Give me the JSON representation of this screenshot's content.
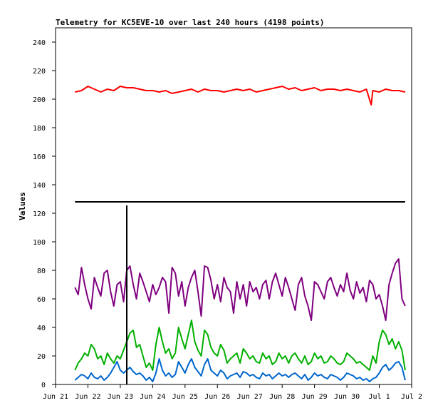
{
  "chart_data": {
    "type": "line",
    "title": "Telemetry for KC5EVE-10 over last 240 hours (4198 points)",
    "xlabel": "",
    "ylabel": "Values",
    "ylim": [
      0,
      250
    ],
    "yticks": [
      0,
      20,
      40,
      60,
      80,
      100,
      120,
      140,
      160,
      180,
      200,
      220,
      240
    ],
    "xlim": [
      0,
      11
    ],
    "x_tick_labels": [
      "Jun 21",
      "Jun 22",
      "Jun 23",
      "Jun 24",
      "Jun 25",
      "Jun 26",
      "Jun 27",
      "Jun 28",
      "Jun 29",
      "Jun 30",
      "Jul 1",
      "Jul 2"
    ],
    "grid": false,
    "legend": "none",
    "colors": {
      "red": "#ff0000",
      "black": "#000000",
      "purple": "#7f007f",
      "green": "#00b000",
      "blue": "#0066cc"
    },
    "series": [
      {
        "color": "#ff0000",
        "x": [
          0.6,
          0.8,
          1.0,
          1.2,
          1.4,
          1.6,
          1.8,
          2.0,
          2.2,
          2.4,
          2.6,
          2.8,
          3.0,
          3.2,
          3.4,
          3.6,
          3.8,
          4.0,
          4.2,
          4.4,
          4.6,
          4.8,
          5.0,
          5.2,
          5.4,
          5.6,
          5.8,
          6.0,
          6.2,
          6.4,
          6.6,
          6.8,
          7.0,
          7.2,
          7.4,
          7.6,
          7.8,
          8.0,
          8.2,
          8.4,
          8.6,
          8.8,
          9.0,
          9.2,
          9.4,
          9.6,
          9.75,
          9.8,
          10.0,
          10.2,
          10.4,
          10.6,
          10.8
        ],
        "y": [
          205,
          206,
          209,
          207,
          205,
          207,
          206,
          209,
          208,
          208,
          207,
          206,
          206,
          205,
          206,
          204,
          205,
          206,
          207,
          205,
          207,
          206,
          206,
          205,
          206,
          207,
          206,
          207,
          205,
          206,
          207,
          208,
          209,
          207,
          208,
          206,
          207,
          208,
          206,
          207,
          207,
          206,
          207,
          206,
          205,
          207,
          196,
          206,
          205,
          207,
          206,
          206,
          205
        ]
      },
      {
        "color": "#000000",
        "x": [
          0.6,
          10.8
        ],
        "y": [
          128,
          128
        ]
      },
      {
        "color": "#7f007f",
        "x": [
          0.6,
          0.7,
          0.8,
          0.9,
          1.0,
          1.1,
          1.2,
          1.3,
          1.4,
          1.5,
          1.6,
          1.7,
          1.8,
          1.9,
          2.0,
          2.1,
          2.2,
          2.3,
          2.4,
          2.5,
          2.6,
          2.7,
          2.8,
          2.9,
          3.0,
          3.1,
          3.2,
          3.3,
          3.4,
          3.5,
          3.6,
          3.7,
          3.8,
          3.9,
          4.0,
          4.1,
          4.2,
          4.3,
          4.4,
          4.5,
          4.6,
          4.7,
          4.8,
          4.9,
          5.0,
          5.1,
          5.2,
          5.3,
          5.4,
          5.5,
          5.6,
          5.7,
          5.8,
          5.9,
          6.0,
          6.1,
          6.2,
          6.3,
          6.4,
          6.5,
          6.6,
          6.7,
          6.8,
          6.9,
          7.0,
          7.1,
          7.2,
          7.3,
          7.4,
          7.5,
          7.6,
          7.7,
          7.8,
          7.9,
          8.0,
          8.1,
          8.2,
          8.3,
          8.4,
          8.5,
          8.6,
          8.7,
          8.8,
          8.9,
          9.0,
          9.1,
          9.2,
          9.3,
          9.4,
          9.5,
          9.6,
          9.7,
          9.8,
          9.9,
          10.0,
          10.1,
          10.2,
          10.3,
          10.4,
          10.5,
          10.6,
          10.7,
          10.8
        ],
        "y": [
          68,
          63,
          82,
          70,
          60,
          53,
          75,
          68,
          62,
          78,
          80,
          65,
          55,
          70,
          72,
          58,
          80,
          83,
          70,
          60,
          78,
          72,
          65,
          58,
          70,
          63,
          68,
          75,
          72,
          50,
          82,
          78,
          62,
          72,
          55,
          68,
          75,
          80,
          65,
          48,
          83,
          82,
          73,
          60,
          70,
          58,
          75,
          68,
          65,
          50,
          72,
          60,
          70,
          55,
          72,
          65,
          68,
          60,
          70,
          73,
          60,
          72,
          78,
          70,
          62,
          75,
          68,
          60,
          52,
          70,
          75,
          62,
          55,
          45,
          72,
          70,
          65,
          60,
          72,
          75,
          68,
          62,
          70,
          65,
          78,
          66,
          60,
          72,
          64,
          68,
          58,
          73,
          70,
          60,
          63,
          55,
          45,
          70,
          78,
          85,
          88,
          60,
          55
        ]
      },
      {
        "color": "#00b000",
        "x": [
          0.6,
          0.7,
          0.8,
          0.9,
          1.0,
          1.1,
          1.2,
          1.3,
          1.4,
          1.5,
          1.6,
          1.7,
          1.8,
          1.9,
          2.0,
          2.1,
          2.2,
          2.3,
          2.4,
          2.5,
          2.6,
          2.7,
          2.8,
          2.9,
          3.0,
          3.1,
          3.2,
          3.3,
          3.4,
          3.5,
          3.6,
          3.7,
          3.8,
          3.9,
          4.0,
          4.1,
          4.2,
          4.3,
          4.4,
          4.5,
          4.6,
          4.7,
          4.8,
          4.9,
          5.0,
          5.1,
          5.2,
          5.3,
          5.4,
          5.5,
          5.6,
          5.7,
          5.8,
          5.9,
          6.0,
          6.1,
          6.2,
          6.3,
          6.4,
          6.5,
          6.6,
          6.7,
          6.8,
          6.9,
          7.0,
          7.1,
          7.2,
          7.3,
          7.4,
          7.5,
          7.6,
          7.7,
          7.8,
          7.9,
          8.0,
          8.1,
          8.2,
          8.3,
          8.4,
          8.5,
          8.6,
          8.7,
          8.8,
          8.9,
          9.0,
          9.1,
          9.2,
          9.3,
          9.4,
          9.5,
          9.6,
          9.7,
          9.8,
          9.9,
          10.0,
          10.1,
          10.2,
          10.3,
          10.4,
          10.5,
          10.6,
          10.7,
          10.8
        ],
        "y": [
          10,
          15,
          18,
          22,
          20,
          28,
          25,
          18,
          20,
          14,
          22,
          18,
          15,
          20,
          18,
          24,
          30,
          36,
          38,
          26,
          28,
          20,
          12,
          15,
          10,
          28,
          40,
          30,
          22,
          25,
          18,
          22,
          40,
          32,
          25,
          35,
          45,
          30,
          24,
          20,
          38,
          35,
          26,
          22,
          20,
          28,
          24,
          15,
          18,
          20,
          22,
          15,
          25,
          22,
          18,
          20,
          16,
          15,
          22,
          18,
          20,
          14,
          16,
          22,
          18,
          20,
          15,
          20,
          22,
          18,
          15,
          20,
          14,
          16,
          22,
          18,
          20,
          15,
          16,
          20,
          18,
          15,
          14,
          16,
          22,
          20,
          18,
          15,
          16,
          14,
          12,
          10,
          20,
          15,
          30,
          38,
          35,
          28,
          32,
          25,
          30,
          24,
          10
        ]
      },
      {
        "color": "#0066cc",
        "x": [
          0.6,
          0.7,
          0.8,
          0.9,
          1.0,
          1.1,
          1.2,
          1.3,
          1.4,
          1.5,
          1.6,
          1.7,
          1.8,
          1.9,
          2.0,
          2.1,
          2.2,
          2.3,
          2.4,
          2.5,
          2.6,
          2.7,
          2.8,
          2.9,
          3.0,
          3.1,
          3.2,
          3.3,
          3.4,
          3.5,
          3.6,
          3.7,
          3.8,
          3.9,
          4.0,
          4.1,
          4.2,
          4.3,
          4.4,
          4.5,
          4.6,
          4.7,
          4.8,
          4.9,
          5.0,
          5.1,
          5.2,
          5.3,
          5.4,
          5.5,
          5.6,
          5.7,
          5.8,
          5.9,
          6.0,
          6.1,
          6.2,
          6.3,
          6.4,
          6.5,
          6.6,
          6.7,
          6.8,
          6.9,
          7.0,
          7.1,
          7.2,
          7.3,
          7.4,
          7.5,
          7.6,
          7.7,
          7.8,
          7.9,
          8.0,
          8.1,
          8.2,
          8.3,
          8.4,
          8.5,
          8.6,
          8.7,
          8.8,
          8.9,
          9.0,
          9.1,
          9.2,
          9.3,
          9.4,
          9.5,
          9.6,
          9.7,
          9.8,
          9.9,
          10.0,
          10.1,
          10.2,
          10.3,
          10.4,
          10.5,
          10.6,
          10.7,
          10.8
        ],
        "y": [
          3,
          5,
          7,
          6,
          4,
          8,
          5,
          4,
          6,
          3,
          5,
          8,
          12,
          16,
          10,
          8,
          10,
          12,
          9,
          7,
          8,
          6,
          3,
          5,
          2,
          8,
          18,
          10,
          6,
          8,
          5,
          7,
          16,
          12,
          8,
          14,
          18,
          12,
          9,
          6,
          14,
          18,
          10,
          8,
          6,
          10,
          8,
          4,
          6,
          7,
          8,
          5,
          9,
          8,
          6,
          7,
          5,
          4,
          8,
          6,
          7,
          4,
          6,
          8,
          6,
          7,
          5,
          7,
          8,
          6,
          4,
          7,
          3,
          5,
          8,
          6,
          7,
          5,
          4,
          7,
          6,
          5,
          3,
          5,
          8,
          7,
          6,
          4,
          5,
          3,
          4,
          2,
          4,
          5,
          8,
          12,
          14,
          10,
          12,
          15,
          16,
          12,
          3
        ]
      }
    ]
  }
}
